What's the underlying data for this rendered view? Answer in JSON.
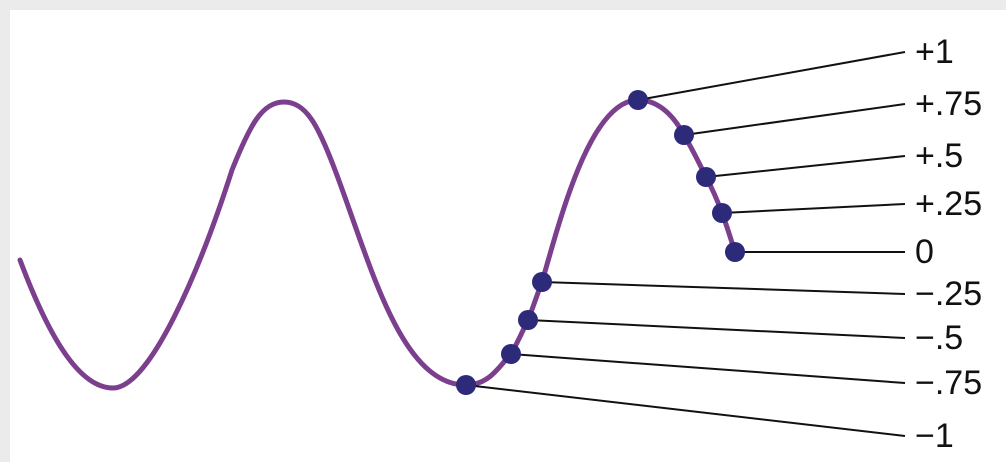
{
  "diagram": {
    "wave_color": "#7b3f8e",
    "point_color": "#2e2a7a",
    "leader_color": "#111111",
    "levels": [
      {
        "label": "+1"
      },
      {
        "label": "+.75"
      },
      {
        "label": "+.5"
      },
      {
        "label": "+.25"
      },
      {
        "label": "0"
      },
      {
        "label": "−.25"
      },
      {
        "label": "−.5"
      },
      {
        "label": "−.75"
      },
      {
        "label": "−1"
      }
    ]
  }
}
